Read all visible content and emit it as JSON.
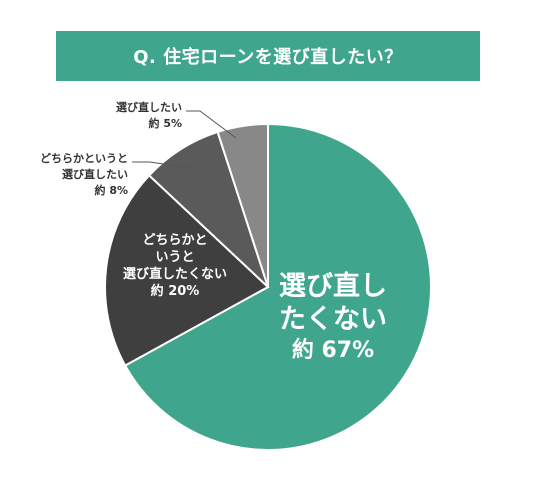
{
  "colors": {
    "accent": "#3fa68d",
    "dark": "#3f3f3f",
    "mid": "#5a5a5a",
    "light": "#888888"
  },
  "title": "Q. 住宅ローンを選び直したい？",
  "chart_data": {
    "type": "pie",
    "title": "Q. 住宅ローンを選び直したい？",
    "slices": [
      {
        "label_lines": [
          "選び直し",
          "たくない"
        ],
        "pct_text": "約 67%",
        "value": 67,
        "color": "#3fa68d"
      },
      {
        "label_lines": [
          "どちらかと",
          "いうと",
          "選び直したくない"
        ],
        "pct_text": "約 20%",
        "value": 20,
        "color": "#3f3f3f"
      },
      {
        "label_lines": [
          "どちらかというと",
          "選び直したい"
        ],
        "pct_text": "約 8%",
        "value": 8,
        "color": "#5a5a5a"
      },
      {
        "label_lines": [
          "選び直したい"
        ],
        "pct_text": "約 5%",
        "value": 5,
        "color": "#888888"
      }
    ]
  }
}
